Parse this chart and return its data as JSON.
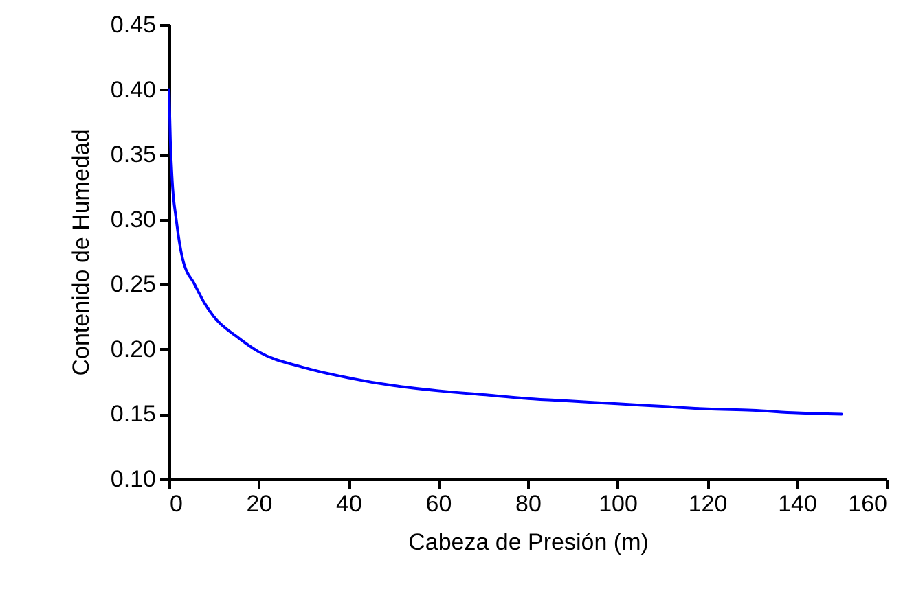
{
  "chart_data": {
    "type": "line",
    "xlabel": "Cabeza de Presión (m)",
    "ylabel": "Contenido de Humedad",
    "x": [
      0,
      0.3,
      0.7,
      1.6,
      3,
      5.7,
      8,
      10,
      15,
      20,
      30,
      40,
      50,
      60,
      70,
      80,
      90,
      100,
      110,
      120,
      130,
      140,
      150
    ],
    "series": [
      {
        "color": "#0000ff",
        "values": [
          0.4,
          0.36,
          0.33,
          0.3,
          0.27,
          0.25,
          0.235,
          0.225,
          0.21,
          0.198,
          0.186,
          0.178,
          0.172,
          0.168,
          0.165,
          0.162,
          0.16,
          0.158,
          0.156,
          0.154,
          0.153,
          0.151,
          0.15
        ]
      }
    ],
    "xlim": [
      0,
      160
    ],
    "xticks": [
      0,
      20,
      40,
      60,
      80,
      100,
      120,
      140,
      160
    ],
    "ylim": [
      0.1,
      0.45
    ],
    "yticks": [
      {
        "value": 0.1,
        "label": "0.10"
      },
      {
        "value": 0.15,
        "label": "0.15"
      },
      {
        "value": 0.2,
        "label": "0.20"
      },
      {
        "value": 0.25,
        "label": "0.25"
      },
      {
        "value": 0.3,
        "label": "0.30"
      },
      {
        "value": 0.35,
        "label": "0.35"
      },
      {
        "value": 0.4,
        "label": "0.40"
      },
      {
        "value": 0.45,
        "label": "0.45"
      }
    ],
    "grid": false,
    "marker": "none",
    "line_style": "solid"
  }
}
